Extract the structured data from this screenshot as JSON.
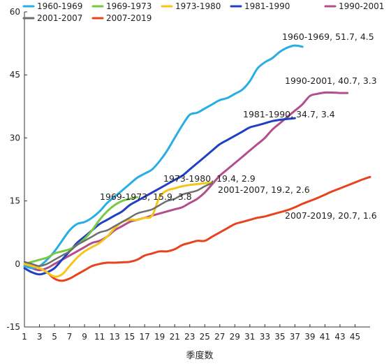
{
  "chart_data": {
    "type": "line",
    "title": "",
    "xlabel": "季度数",
    "ylabel": "",
    "xlim": [
      1,
      47
    ],
    "ylim": [
      -15,
      60
    ],
    "x_ticks": [
      1,
      3,
      5,
      7,
      9,
      11,
      13,
      15,
      17,
      19,
      21,
      23,
      25,
      27,
      29,
      31,
      33,
      35,
      37,
      39,
      41,
      43,
      45
    ],
    "y_ticks": [
      -15,
      0,
      15,
      30,
      45,
      60
    ],
    "x_tick_labels": [
      "1",
      "3",
      "5",
      "7",
      "9",
      "11",
      "13",
      "15",
      "17",
      "19",
      "21",
      "23",
      "25",
      "27",
      "29",
      "31",
      "33",
      "35",
      "37",
      "39",
      "41",
      "43",
      "45"
    ],
    "y_tick_labels": [
      "-15",
      "0",
      "15",
      "30",
      "45",
      "60"
    ],
    "grid": false,
    "legend_position": "top",
    "series": [
      {
        "name": "1960-1969",
        "color": "#27aee4",
        "x": [
          1,
          2,
          3,
          4,
          5,
          6,
          7,
          8,
          9,
          10,
          11,
          12,
          13,
          14,
          15,
          16,
          17,
          18,
          19,
          20,
          21,
          22,
          23,
          24,
          25,
          26,
          27,
          28,
          29,
          30,
          31,
          32,
          33,
          34,
          35,
          36,
          37,
          38
        ],
        "y": [
          -0.5,
          -1.0,
          -0.5,
          1.0,
          3.0,
          5.5,
          8.0,
          9.5,
          10.0,
          11.0,
          12.5,
          14.5,
          16.0,
          17.5,
          19.0,
          20.5,
          21.5,
          22.5,
          24.5,
          27.0,
          30.0,
          33.0,
          35.5,
          36.0,
          37.0,
          38.0,
          39.0,
          39.5,
          40.5,
          41.5,
          43.5,
          46.5,
          48.0,
          49.0,
          50.5,
          51.5,
          52.0,
          51.7
        ]
      },
      {
        "name": "1969-1973",
        "color": "#77c843",
        "x": [
          1,
          2,
          3,
          4,
          5,
          6,
          7,
          8,
          9,
          10,
          11,
          12,
          13,
          14,
          15,
          16
        ],
        "y": [
          0,
          0.5,
          1.0,
          1.5,
          2.5,
          3.0,
          3.5,
          4.5,
          6.0,
          8.0,
          10.5,
          12.5,
          14.0,
          15.0,
          15.5,
          15.9
        ]
      },
      {
        "name": "1973-1980",
        "color": "#f5c518",
        "x": [
          1,
          2,
          3,
          4,
          5,
          6,
          7,
          8,
          9,
          10,
          11,
          12,
          13,
          14,
          15,
          16,
          17,
          18,
          19,
          20,
          21,
          22,
          23,
          24,
          25,
          26
        ],
        "y": [
          0,
          -0.5,
          -1.0,
          -2.0,
          -3.0,
          -2.5,
          -0.5,
          1.5,
          3.0,
          4.0,
          5.0,
          6.5,
          8.5,
          10.0,
          10.5,
          10.5,
          11.0,
          11.5,
          16.0,
          17.5,
          18.0,
          18.5,
          18.8,
          19.0,
          19.2,
          19.4
        ]
      },
      {
        "name": "1981-1990",
        "color": "#1f3fc4",
        "x": [
          1,
          2,
          3,
          4,
          5,
          6,
          7,
          8,
          9,
          10,
          11,
          12,
          13,
          14,
          15,
          16,
          17,
          18,
          19,
          20,
          21,
          22,
          23,
          24,
          25,
          26,
          27,
          28,
          29,
          30,
          31,
          32,
          33,
          34,
          35,
          36,
          37
        ],
        "y": [
          -1.0,
          -2.0,
          -2.5,
          -2.0,
          -1.0,
          1.0,
          3.0,
          5.0,
          6.5,
          8.0,
          9.5,
          10.5,
          11.5,
          12.5,
          14.0,
          15.0,
          16.0,
          17.0,
          18.0,
          19.0,
          20.0,
          21.0,
          22.5,
          24.0,
          25.5,
          27.0,
          28.5,
          29.5,
          30.5,
          31.5,
          32.5,
          33.0,
          33.5,
          34.0,
          34.3,
          34.5,
          34.7
        ]
      },
      {
        "name": "1990-2001",
        "color": "#b34e8c",
        "x": [
          1,
          2,
          3,
          4,
          5,
          6,
          7,
          8,
          9,
          10,
          11,
          12,
          13,
          14,
          15,
          16,
          17,
          18,
          19,
          20,
          21,
          22,
          23,
          24,
          25,
          26,
          27,
          28,
          29,
          30,
          31,
          32,
          33,
          34,
          35,
          36,
          37,
          38,
          39,
          40,
          41,
          42,
          43,
          44
        ],
        "y": [
          0,
          -1.0,
          -1.5,
          -1.0,
          0,
          1.0,
          2.0,
          3.0,
          4.0,
          5.0,
          5.5,
          6.5,
          8.0,
          9.0,
          10.0,
          10.5,
          11.0,
          11.5,
          12.0,
          12.5,
          13.0,
          13.5,
          14.5,
          15.5,
          17.0,
          19.0,
          21.0,
          22.5,
          24.0,
          25.5,
          27.0,
          28.5,
          30.0,
          32.0,
          33.5,
          35.0,
          36.5,
          38.0,
          40.0,
          40.5,
          40.8,
          40.8,
          40.7,
          40.7
        ]
      },
      {
        "name": "2001-2007",
        "color": "#6e6e6e",
        "x": [
          1,
          2,
          3,
          4,
          5,
          6,
          7,
          8,
          9,
          10,
          11,
          12,
          13,
          14,
          15,
          16,
          17,
          18,
          19,
          20,
          21,
          22,
          23,
          24,
          25,
          26
        ],
        "y": [
          0.5,
          0,
          -0.5,
          0,
          1.0,
          2.0,
          3.0,
          4.5,
          5.5,
          6.5,
          7.5,
          8.0,
          9.0,
          10.0,
          11.0,
          12.0,
          12.5,
          13.0,
          14.0,
          15.0,
          15.5,
          16.5,
          17.0,
          17.5,
          18.5,
          19.2
        ]
      },
      {
        "name": "2007-2019",
        "color": "#e8421e",
        "x": [
          1,
          2,
          3,
          4,
          5,
          6,
          7,
          8,
          9,
          10,
          11,
          12,
          13,
          14,
          15,
          16,
          17,
          18,
          19,
          20,
          21,
          22,
          23,
          24,
          25,
          26,
          27,
          28,
          29,
          30,
          31,
          32,
          33,
          34,
          35,
          36,
          37,
          38,
          39,
          40,
          41,
          42,
          43,
          44,
          45,
          46,
          47
        ],
        "y": [
          0,
          -0.5,
          -1.0,
          -2.0,
          -3.5,
          -4.0,
          -3.5,
          -2.5,
          -1.5,
          -0.5,
          0,
          0.3,
          0.3,
          0.4,
          0.5,
          1.0,
          2.0,
          2.5,
          3.0,
          3.0,
          3.5,
          4.5,
          5.0,
          5.5,
          5.5,
          6.5,
          7.5,
          8.5,
          9.5,
          10.0,
          10.5,
          11.0,
          11.3,
          11.8,
          12.3,
          12.8,
          13.5,
          14.3,
          15.0,
          15.7,
          16.5,
          17.3,
          18.0,
          18.7,
          19.4,
          20.1,
          20.7
        ]
      }
    ],
    "annotations": [
      {
        "text": "1960-1969, 51.7, 4.5",
        "series": "1960-1969"
      },
      {
        "text": "1990-2001, 40.7, 3.3",
        "series": "1990-2001"
      },
      {
        "text": "1981-1990, 34.7, 3.4",
        "series": "1981-1990"
      },
      {
        "text": "1973-1980, 19.4, 2.9",
        "series": "1973-1980"
      },
      {
        "text": "2001-2007, 19.2, 2.6",
        "series": "2001-2007"
      },
      {
        "text": "1969-1973, 15.9, 3.8",
        "series": "1969-1973"
      },
      {
        "text": "2007-2019, 20.7, 1.6",
        "series": "2007-2019"
      }
    ]
  }
}
